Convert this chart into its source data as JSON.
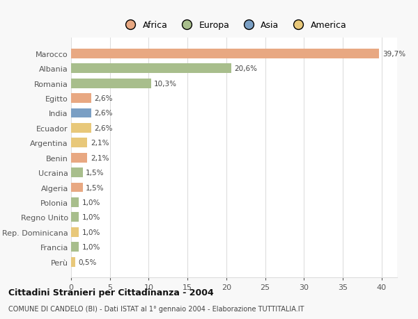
{
  "countries": [
    "Marocco",
    "Albania",
    "Romania",
    "Egitto",
    "India",
    "Ecuador",
    "Argentina",
    "Benin",
    "Ucraina",
    "Algeria",
    "Polonia",
    "Regno Unito",
    "Rep. Dominicana",
    "Francia",
    "Perù"
  ],
  "values": [
    39.7,
    20.6,
    10.3,
    2.6,
    2.6,
    2.6,
    2.1,
    2.1,
    1.5,
    1.5,
    1.0,
    1.0,
    1.0,
    1.0,
    0.5
  ],
  "labels": [
    "39,7%",
    "20,6%",
    "10,3%",
    "2,6%",
    "2,6%",
    "2,6%",
    "2,1%",
    "2,1%",
    "1,5%",
    "1,5%",
    "1,0%",
    "1,0%",
    "1,0%",
    "1,0%",
    "0,5%"
  ],
  "colors": [
    "#e8a882",
    "#a8be8c",
    "#a8be8c",
    "#e8a882",
    "#7a9fc4",
    "#e8c87a",
    "#e8c87a",
    "#e8a882",
    "#a8be8c",
    "#e8a882",
    "#a8be8c",
    "#a8be8c",
    "#e8c87a",
    "#a8be8c",
    "#e8c87a"
  ],
  "continent_colors": {
    "Africa": "#e8a882",
    "Europa": "#a8be8c",
    "Asia": "#7a9fc4",
    "America": "#e8c87a"
  },
  "title": "Cittadini Stranieri per Cittadinanza - 2004",
  "subtitle": "COMUNE DI CANDELO (BI) - Dati ISTAT al 1° gennaio 2004 - Elaborazione TUTTITALIA.IT",
  "xlim": [
    0,
    42
  ],
  "xticks": [
    0,
    5,
    10,
    15,
    20,
    25,
    30,
    35,
    40
  ],
  "background_color": "#f8f8f8",
  "plot_bg_color": "#ffffff",
  "grid_color": "#dddddd"
}
